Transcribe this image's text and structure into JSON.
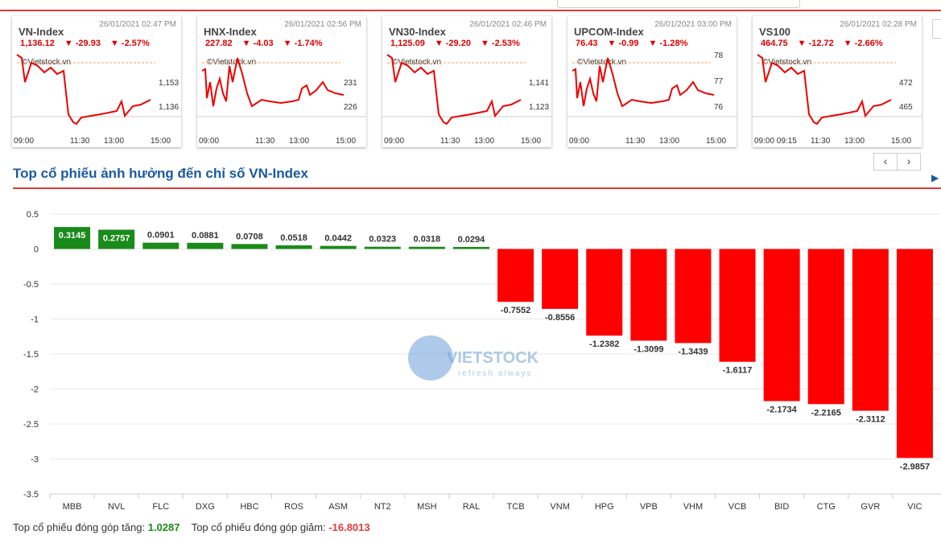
{
  "cards": [
    {
      "name": "VN-Index",
      "timestamp": "26/01/2021 02:47 PM",
      "value": "1,136.12",
      "change": "▼ -29.93",
      "pct": "▼ -2.57%",
      "watermark": "©Vietstock.vn",
      "y_labels": [
        "1,153",
        "1,136"
      ],
      "x_labels": [
        "09:00",
        "11:30",
        "13:00",
        "15:00"
      ]
    },
    {
      "name": "HNX-Index",
      "timestamp": "26/01/2021 02:56 PM",
      "value": "227.82",
      "change": "▼ -4.03",
      "pct": "▼ -1.74%",
      "watermark": "©Vietstock.vn",
      "y_labels": [
        "231",
        "226"
      ],
      "x_labels": [
        "09:00",
        "11:30",
        "13:00",
        "15:00"
      ]
    },
    {
      "name": "VN30-Index",
      "timestamp": "26/01/2021 02:46 PM",
      "value": "1,125.09",
      "change": "▼ -29.20",
      "pct": "▼ -2.53%",
      "watermark": "©Vietstock.vn",
      "y_labels": [
        "1,141",
        "1,123"
      ],
      "x_labels": [
        "09:00",
        "11:30",
        "13:00",
        "15:00"
      ]
    },
    {
      "name": "UPCOM-Index",
      "timestamp": "26/01/2021 03:00 PM",
      "value": "76.43",
      "change": "▼ -0.99",
      "pct": "▼ -1.28%",
      "watermark": "©Vietstock.vn",
      "y_labels": [
        "78",
        "77",
        "76"
      ],
      "x_labels": [
        "09:00",
        "11:30",
        "13:00",
        "15:00"
      ]
    },
    {
      "name": "VS100",
      "timestamp": "26/01/2021 02:28 PM",
      "value": "464.75",
      "change": "▼ -12.72",
      "pct": "▼ -2.66%",
      "watermark": "©Vietstock.vn",
      "y_labels": [
        "472",
        "465"
      ],
      "x_labels": [
        "09:00 09:15",
        "11:30",
        "13:00",
        "15:00"
      ]
    }
  ],
  "nav": {
    "prev": "‹",
    "next": "›"
  },
  "section_title": "Top cổ phiếu ảnh hưởng đến chỉ số VN-Index",
  "chart_data": {
    "type": "bar",
    "title": "Top cổ phiếu ảnh hưởng đến chỉ số VN-Index",
    "categories": [
      "MBB",
      "NVL",
      "FLC",
      "DXG",
      "HBC",
      "ROS",
      "ASM",
      "NT2",
      "MSH",
      "RAL",
      "TCB",
      "VNM",
      "HPG",
      "VPB",
      "VHM",
      "VCB",
      "BID",
      "CTG",
      "GVR",
      "VIC"
    ],
    "values": [
      0.3145,
      0.2757,
      0.0901,
      0.0881,
      0.0708,
      0.0518,
      0.0442,
      0.0323,
      0.0318,
      0.0294,
      -0.7552,
      -0.8556,
      -1.2382,
      -1.3099,
      -1.3439,
      -1.6117,
      -2.1734,
      -2.2165,
      -2.3112,
      -2.9857
    ],
    "labels": [
      "0.3145",
      "0.2757",
      "0.0901",
      "0.0881",
      "0.0708",
      "0.0518",
      "0.0442",
      "0.0323",
      "0.0318",
      "0.0294",
      "-0.7552",
      "-0.8556",
      "-1.2382",
      "-1.3099",
      "-1.3439",
      "-1.6117",
      "-2.1734",
      "-2.2165",
      "-2.3112",
      "-2.9857"
    ],
    "ylim": [
      -3.5,
      0.5
    ],
    "yticks": [
      "0.5",
      "0",
      "-0.5",
      "-1",
      "-1.5",
      "-2",
      "-2.5",
      "-3",
      "-3.5"
    ],
    "grid": true,
    "colors": {
      "positive": "#1a8a1a",
      "negative": "#ff0000"
    },
    "watermark": {
      "brand": "VIETSTOCK",
      "tagline": "refresh always"
    }
  },
  "footer": {
    "up_label": "Top cổ phiếu đóng góp tăng:",
    "up_value": "1.0287",
    "down_label": "Top cổ phiếu đóng góp giảm:",
    "down_value": "-16.8013"
  }
}
